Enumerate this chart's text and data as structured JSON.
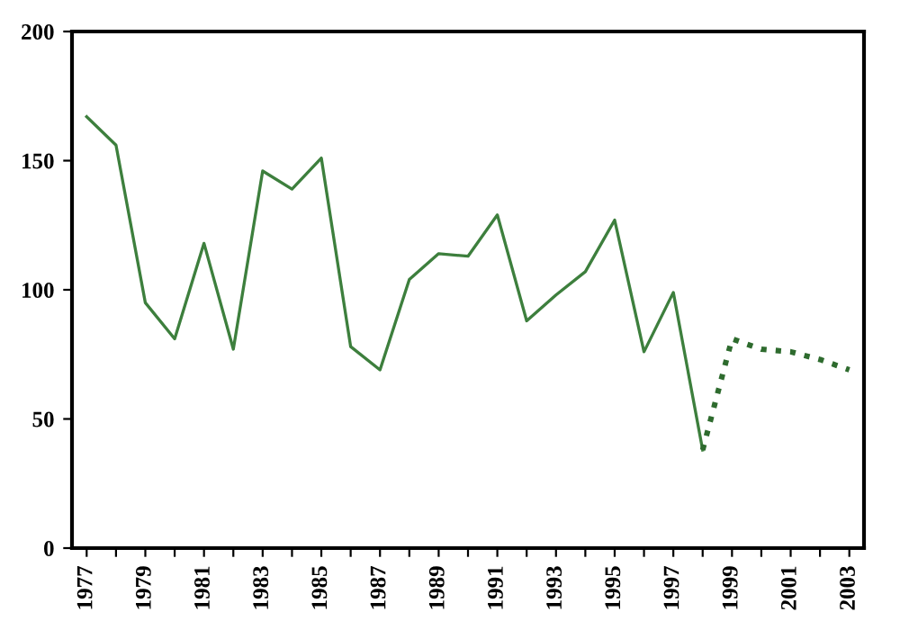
{
  "chart_data": {
    "type": "line",
    "categories": [
      "1977",
      null,
      "1979",
      null,
      "1981",
      null,
      "1983",
      null,
      "1985",
      null,
      "1987",
      null,
      "1989",
      null,
      "1991",
      null,
      "1993",
      null,
      "1995",
      null,
      "1997",
      null,
      "1999",
      null,
      "2001",
      null,
      "2003"
    ],
    "series": [
      {
        "color": "#3d7f3d",
        "line_style": "solid",
        "values": [
          167,
          156,
          95,
          81,
          118,
          77,
          146,
          139,
          151,
          78,
          69,
          104,
          114,
          113,
          129,
          88,
          98,
          107,
          127,
          76,
          99,
          38,
          null,
          null,
          null,
          null,
          null
        ]
      },
      {
        "color": "#2e6b2e",
        "line_style": "dotted",
        "values": [
          null,
          null,
          null,
          null,
          null,
          null,
          null,
          null,
          null,
          null,
          null,
          null,
          null,
          null,
          null,
          null,
          null,
          null,
          null,
          null,
          null,
          38,
          81,
          77,
          76,
          73,
          69
        ]
      }
    ],
    "ylim": [
      0,
      200
    ],
    "yticks": [
      0,
      50,
      100,
      150,
      200
    ],
    "grid": false,
    "legend": false,
    "marker": "none"
  }
}
